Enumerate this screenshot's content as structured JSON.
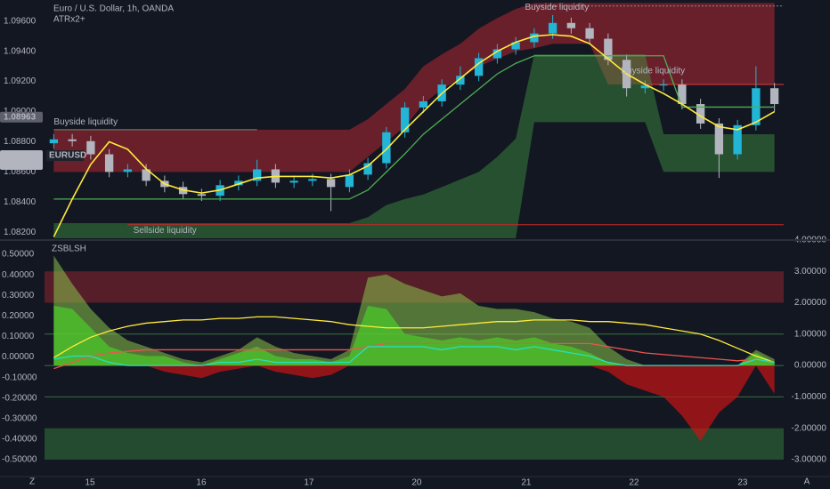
{
  "header": {
    "symbol": "Euro / U.S. Dollar, 1h, OANDA",
    "indicator": "ATRx2+"
  },
  "footer": {
    "left": "Z",
    "right": "A"
  },
  "chart_data": [
    {
      "type": "candlestick",
      "xlim": [
        -0.5,
        39.5
      ],
      "ylim": [
        1.0816,
        1.0974
      ],
      "yticks": [
        {
          "value": 1.096,
          "label": "1.09600"
        },
        {
          "value": 1.094,
          "label": "1.09400"
        },
        {
          "value": 1.092,
          "label": "1.09200"
        },
        {
          "value": 1.09,
          "label": "1.09000"
        },
        {
          "value": 1.088,
          "label": "1.08800"
        },
        {
          "value": 1.086,
          "label": "1.08600"
        },
        {
          "value": 1.084,
          "label": "1.08400"
        },
        {
          "value": 1.082,
          "label": "1.08200"
        }
      ],
      "up_color": "#22b5d6",
      "down_color": "#b2b5be",
      "candles": {
        "open": [
          1.0879,
          1.08816,
          1.08804,
          1.08717,
          1.086,
          1.08617,
          1.08541,
          1.085,
          1.08453,
          1.08442,
          1.08512,
          1.08541,
          1.08617,
          1.08529,
          1.08541,
          1.08553,
          1.085,
          1.08582,
          1.08658,
          1.08863,
          1.09027,
          1.09068,
          1.09179,
          1.09237,
          1.09354,
          1.09413,
          1.0946,
          1.09518,
          1.09588,
          1.09553,
          1.09483,
          1.09343,
          1.09155,
          1.09173,
          1.09179,
          1.0905,
          1.08921,
          1.08717,
          1.0891,
          1.09155
        ],
        "high": [
          1.08851,
          1.08851,
          1.08839,
          1.08752,
          1.08652,
          1.08652,
          1.08576,
          1.08535,
          1.08488,
          1.08547,
          1.08576,
          1.0868,
          1.08652,
          1.08576,
          1.08588,
          1.08588,
          1.08617,
          1.08693,
          1.08898,
          1.09062,
          1.09103,
          1.09214,
          1.093,
          1.09389,
          1.09448,
          1.09495,
          1.09553,
          1.0964,
          1.09623,
          1.09588,
          1.09518,
          1.09378,
          1.09208,
          1.09214,
          1.09214,
          1.09085,
          1.08956,
          1.08945,
          1.093,
          1.0919
        ],
        "low": [
          1.08755,
          1.08769,
          1.08682,
          1.08565,
          1.08565,
          1.08506,
          1.08465,
          1.08418,
          1.08407,
          1.08407,
          1.08477,
          1.08506,
          1.08494,
          1.08494,
          1.08506,
          1.0834,
          1.08465,
          1.08547,
          1.08623,
          1.08828,
          1.08992,
          1.09033,
          1.09144,
          1.09202,
          1.09319,
          1.09378,
          1.09425,
          1.09483,
          1.09518,
          1.09448,
          1.09308,
          1.091,
          1.0912,
          1.09138,
          1.09015,
          1.08886,
          1.0856,
          1.08682,
          1.08875,
          1.09
        ],
        "close": [
          1.08816,
          1.08804,
          1.08717,
          1.086,
          1.08617,
          1.08541,
          1.085,
          1.08453,
          1.08442,
          1.08512,
          1.08541,
          1.08617,
          1.08529,
          1.08541,
          1.08553,
          1.085,
          1.08582,
          1.08658,
          1.08863,
          1.09027,
          1.09068,
          1.09179,
          1.09237,
          1.09354,
          1.09413,
          1.0946,
          1.09518,
          1.09588,
          1.09553,
          1.09483,
          1.09343,
          1.09155,
          1.09173,
          1.09179,
          1.0905,
          1.08921,
          1.08717,
          1.0891,
          1.09155,
          1.0905
        ]
      },
      "bands": [
        {
          "color": "rgba(178,40,51,0.55)",
          "top": [
            1.0888,
            1.0888,
            1.0888,
            1.0888,
            1.0888,
            1.0888,
            1.0888,
            1.0888,
            1.0888,
            1.0888,
            1.0888,
            1.0888,
            1.0888,
            1.0888,
            1.0888,
            1.0888,
            1.0888,
            1.0895,
            1.0905,
            1.0915,
            1.093,
            1.0938,
            1.0945,
            1.0955,
            1.0962,
            1.0968,
            1.0972,
            1.0972,
            1.0972,
            1.0972,
            1.0972,
            1.0972,
            1.0972,
            1.0972,
            1.0972,
            1.0972,
            1.0972,
            1.0972,
            1.0972,
            1.0972
          ],
          "bottom": [
            1.086,
            1.086,
            1.086,
            1.086,
            1.086,
            1.086,
            1.086,
            1.086,
            1.086,
            1.086,
            1.086,
            1.086,
            1.086,
            1.086,
            1.086,
            1.086,
            1.086,
            1.087,
            1.088,
            1.089,
            1.0905,
            1.0915,
            1.0922,
            1.093,
            1.0935,
            1.094,
            1.0942,
            1.0945,
            1.0945,
            1.0945,
            1.0918,
            1.0918,
            1.0918,
            1.0918,
            1.0918,
            1.0918,
            1.0918,
            1.0918,
            1.0918,
            1.0918
          ]
        },
        {
          "color": "rgba(67,160,71,0.42)",
          "top": [
            1.0826,
            1.0826,
            1.0826,
            1.0826,
            1.0826,
            1.0826,
            1.0826,
            1.0826,
            1.0826,
            1.0826,
            1.0826,
            1.0826,
            1.0826,
            1.0826,
            1.0826,
            1.0826,
            1.0826,
            1.083,
            1.0838,
            1.0842,
            1.0845,
            1.085,
            1.0855,
            1.086,
            1.087,
            1.0882,
            1.0938,
            1.0938,
            1.0938,
            1.0938,
            1.0938,
            1.0938,
            1.0938,
            1.0885,
            1.0885,
            1.0885,
            1.0885,
            1.0885,
            1.0885,
            1.0885
          ],
          "bottom": [
            1.0816,
            1.0816,
            1.0816,
            1.0816,
            1.0816,
            1.0816,
            1.0816,
            1.0816,
            1.0816,
            1.0816,
            1.0816,
            1.0816,
            1.0816,
            1.0816,
            1.0816,
            1.0816,
            1.0816,
            1.0816,
            1.0816,
            1.0816,
            1.0816,
            1.0816,
            1.0816,
            1.0816,
            1.0816,
            1.0816,
            1.0893,
            1.0893,
            1.0893,
            1.0893,
            1.0893,
            1.0893,
            1.0893,
            1.086,
            1.086,
            1.086,
            1.086,
            1.086,
            1.086,
            1.086
          ]
        }
      ],
      "series": [
        {
          "color": "#4caf50",
          "values": [
            1.0842,
            1.0842,
            1.0842,
            1.0842,
            1.0842,
            1.0842,
            1.0842,
            1.0842,
            1.0842,
            1.0842,
            1.0842,
            1.0842,
            1.0842,
            1.0842,
            1.0842,
            1.0842,
            1.0842,
            1.0848,
            1.086,
            1.0872,
            1.0885,
            1.0895,
            1.0905,
            1.0915,
            1.0925,
            1.0932,
            1.0937,
            1.0937,
            1.0937,
            1.0937,
            1.0937,
            1.0937,
            1.0937,
            1.0937,
            1.0903,
            1.0903,
            1.0903,
            1.0903,
            1.0903,
            1.0903
          ]
        },
        {
          "color": "#ffeb3b",
          "values": [
            1.0817,
            1.0842,
            1.0865,
            1.088,
            1.0875,
            1.0862,
            1.0852,
            1.0848,
            1.0846,
            1.0848,
            1.0852,
            1.0856,
            1.0857,
            1.0857,
            1.0857,
            1.0856,
            1.0858,
            1.0864,
            1.0875,
            1.0888,
            1.09,
            1.0912,
            1.0922,
            1.0932,
            1.094,
            1.0946,
            1.095,
            1.0951,
            1.095,
            1.0945,
            1.0935,
            1.0925,
            1.0918,
            1.0912,
            1.0905,
            1.0897,
            1.089,
            1.0888,
            1.0893,
            1.09
          ]
        }
      ],
      "levels": [
        {
          "price": 1.0888,
          "from": 0,
          "to": 11,
          "color": "#6b8f6e"
        },
        {
          "price": 1.0825,
          "from": 4,
          "to": 39.5,
          "color": "#c62828"
        },
        {
          "price": 1.097,
          "from": 26,
          "to": 39.5,
          "color": "#8a8d96"
        },
        {
          "price": 1.0918,
          "from": 32,
          "to": 39.5,
          "color": "#e53935"
        }
      ],
      "annotations": [
        {
          "text": "Buyside liquidity",
          "x": 0,
          "price": 1.0893,
          "color": "#4caf50"
        },
        {
          "text": "Sellside liquidity",
          "x": 4.3,
          "price": 1.0821,
          "color": "#ef5350"
        },
        {
          "text": "Buyside liquidity",
          "x": 25.5,
          "price": 1.0969,
          "color": "#4caf50"
        },
        {
          "text": "Buyside liquidity",
          "x": 30.7,
          "price": 1.0927,
          "color": "#8bc34a"
        }
      ],
      "price_labels": [
        {
          "value": 1.08963,
          "label": "1.08963",
          "color": "#5d606b"
        },
        {
          "value": 1.08708,
          "label": "1.08708",
          "color": "#b2b5be",
          "countdown": "02:01"
        }
      ],
      "symbol_tag": "EURUSD"
    },
    {
      "type": "area",
      "title": "ZSBLSH",
      "xlim": [
        -0.5,
        39.5
      ],
      "xticks": [
        {
          "value": 1.96,
          "label": "15"
        },
        {
          "value": 7.98,
          "label": "16"
        },
        {
          "value": 13.81,
          "label": "17"
        },
        {
          "value": 19.64,
          "label": "20"
        },
        {
          "value": 25.57,
          "label": "21"
        },
        {
          "value": 31.4,
          "label": "22"
        },
        {
          "value": 37.28,
          "label": "23"
        }
      ],
      "ylim": [
        -0.578,
        0.561
      ],
      "yticks": [
        {
          "value": 0.5,
          "label": "0.50000"
        },
        {
          "value": 0.4,
          "label": "0.40000"
        },
        {
          "value": 0.3,
          "label": "0.30000"
        },
        {
          "value": 0.2,
          "label": "0.20000"
        },
        {
          "value": 0.1,
          "label": "0.10000"
        },
        {
          "value": 0,
          "label": "0.00000"
        },
        {
          "value": -0.1,
          "label": "-0.10000"
        },
        {
          "value": -0.2,
          "label": "-0.20000"
        },
        {
          "value": -0.3,
          "label": "-0.30000"
        },
        {
          "value": -0.4,
          "label": "-0.40000"
        },
        {
          "value": -0.5,
          "label": "-0.50000"
        }
      ],
      "y2lim": [
        -3.51,
        3.94
      ],
      "y2ticks": [
        {
          "value": 4,
          "label": "4.00000"
        },
        {
          "value": 3,
          "label": "3.00000"
        },
        {
          "value": 2,
          "label": "2.00000"
        },
        {
          "value": 1,
          "label": "1.00000"
        },
        {
          "value": 0,
          "label": "0.00000"
        },
        {
          "value": -1,
          "label": "-1.00000"
        },
        {
          "value": -2,
          "label": "-2.00000"
        },
        {
          "value": -3,
          "label": "-3.00000"
        }
      ],
      "zones": [
        {
          "from": 2,
          "to": 3,
          "color": "rgba(178,40,51,0.42)"
        },
        {
          "from": -2,
          "to": -3,
          "color": "rgba(67,160,71,0.38)"
        }
      ],
      "hlines": [
        1,
        0,
        -1
      ],
      "series": [
        {
          "type": "area",
          "axis": "y2",
          "color": "rgba(139,195,74,0.55)",
          "values": [
            3.5,
            2.6,
            1.8,
            1.2,
            0.8,
            0.6,
            0.4,
            0.2,
            0.1,
            0.3,
            0.5,
            0.9,
            0.6,
            0.4,
            0.3,
            0.2,
            0.5,
            2.8,
            2.9,
            2.6,
            2.4,
            2.2,
            2.3,
            1.9,
            1.8,
            1.8,
            1.7,
            1.5,
            1.4,
            1.2,
            0.6,
            0.2,
            0,
            0,
            0,
            0,
            0,
            0,
            0.5,
            0.2
          ]
        },
        {
          "type": "area",
          "axis": "y2",
          "color": "rgba(76,200,40,0.75)",
          "values": [
            1.9,
            1.8,
            1.2,
            0.6,
            0.4,
            0.3,
            0.3,
            0.1,
            0,
            0.2,
            0.4,
            0.6,
            0.3,
            0.2,
            0.2,
            0.1,
            0.3,
            1.9,
            1.8,
            1.0,
            0.9,
            0.8,
            0.9,
            0.8,
            0.9,
            0.8,
            0.9,
            0.7,
            0.6,
            0.4,
            0.1,
            0,
            0,
            0,
            0,
            0,
            0,
            0,
            0.4,
            0.1
          ]
        },
        {
          "type": "area",
          "axis": "y2",
          "color": "rgba(200,20,20,0.7)",
          "values": [
            0,
            0,
            0,
            0,
            0,
            0,
            -0.2,
            -0.3,
            -0.4,
            -0.2,
            -0.1,
            0,
            -0.2,
            -0.3,
            -0.4,
            -0.3,
            0,
            0,
            0,
            0,
            0,
            0,
            0,
            0,
            0,
            0,
            0,
            0,
            0,
            0,
            -0.2,
            -0.6,
            -0.8,
            -1.0,
            -1.6,
            -2.4,
            -1.5,
            -1.0,
            0,
            -0.9
          ]
        },
        {
          "type": "line",
          "axis": "y2",
          "color": "#ffeb3b",
          "values": [
            0.25,
            0.6,
            0.9,
            1.1,
            1.25,
            1.35,
            1.4,
            1.45,
            1.45,
            1.5,
            1.5,
            1.55,
            1.55,
            1.5,
            1.45,
            1.4,
            1.3,
            1.25,
            1.2,
            1.2,
            1.2,
            1.25,
            1.3,
            1.35,
            1.4,
            1.4,
            1.45,
            1.45,
            1.45,
            1.4,
            1.4,
            1.35,
            1.3,
            1.2,
            1.1,
            1.0,
            0.8,
            0.55,
            0.3,
            0.1
          ]
        },
        {
          "type": "line",
          "axis": "y2",
          "color": "#ef5350",
          "values": [
            -0.1,
            0.1,
            0.3,
            0.4,
            0.45,
            0.5,
            0.5,
            0.5,
            0.5,
            0.5,
            0.5,
            0.5,
            0.5,
            0.5,
            0.5,
            0.5,
            0.5,
            0.6,
            0.7,
            0.7,
            0.7,
            0.7,
            0.7,
            0.7,
            0.7,
            0.7,
            0.7,
            0.7,
            0.7,
            0.7,
            0.6,
            0.5,
            0.4,
            0.35,
            0.3,
            0.25,
            0.2,
            0.15,
            0.2,
            0.1
          ]
        },
        {
          "type": "line",
          "axis": "y2",
          "color": "#26e0c0",
          "values": [
            0.2,
            0.3,
            0.3,
            0.1,
            0,
            0,
            0,
            0,
            0,
            0.1,
            0.1,
            0.2,
            0.1,
            0.1,
            0.1,
            0.1,
            0.1,
            0.6,
            0.6,
            0.6,
            0.6,
            0.5,
            0.6,
            0.6,
            0.6,
            0.5,
            0.6,
            0.5,
            0.4,
            0.3,
            0.1,
            0,
            0,
            0,
            0,
            0,
            0,
            0,
            0.2,
            0.1
          ]
        }
      ]
    }
  ]
}
